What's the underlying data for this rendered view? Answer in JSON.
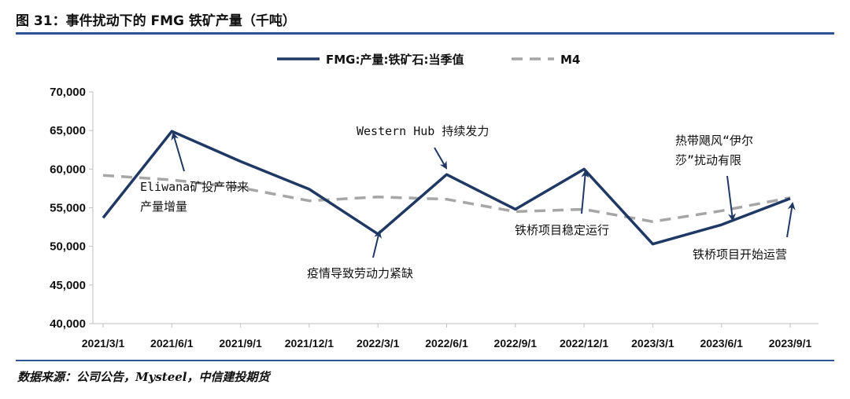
{
  "header": {
    "title": "图 31：事件扰动下的 FMG 铁矿产量（千吨）"
  },
  "footer": {
    "source": "数据来源：公司公告，Mysteel，中信建投期货"
  },
  "colors": {
    "series_main": "#203864",
    "series_ma": "#a6a6a6",
    "rule": "#2f5496",
    "arrow": "#1f3864"
  },
  "chart_data": {
    "type": "line",
    "x": [
      "2021/3/1",
      "2021/6/1",
      "2021/9/1",
      "2021/12/1",
      "2022/3/1",
      "2022/6/1",
      "2022/9/1",
      "2022/12/1",
      "2023/3/1",
      "2023/6/1",
      "2023/9/1"
    ],
    "series": [
      {
        "name": "FMG:产量:铁矿石:当季值",
        "style": "solid",
        "values": [
          53700,
          64900,
          61000,
          57400,
          51600,
          59300,
          54800,
          60000,
          50300,
          52800,
          56200
        ]
      },
      {
        "name": "M4",
        "style": "dashed",
        "values": [
          59200,
          58600,
          57600,
          55900,
          56400,
          56100,
          54500,
          54800,
          53200,
          54600,
          56300
        ]
      }
    ],
    "ylim": [
      40000,
      70000
    ],
    "yticks": [
      40000,
      45000,
      50000,
      55000,
      60000,
      65000,
      70000
    ],
    "ytick_labels": [
      "40,000",
      "45,000",
      "50,000",
      "55,000",
      "60,000",
      "65,000",
      "70,000"
    ],
    "legend_position": "top-center",
    "grid": false,
    "annotations": [
      {
        "lines": [
          "Eliwana矿投产带来",
          "产量增量"
        ],
        "point_index": 1
      },
      {
        "lines": [
          "疫情导致劳动力紧缺"
        ],
        "point_index": 4
      },
      {
        "lines": [
          "Western Hub 持续发力"
        ],
        "point_index": 5
      },
      {
        "lines": [
          "铁桥项目稳定运行"
        ],
        "point_index": 7
      },
      {
        "lines": [
          "热带飓风“伊尔",
          "莎”扰动有限"
        ],
        "point_index": 9
      },
      {
        "lines": [
          "铁桥项目开始运营"
        ],
        "point_index": 10
      }
    ]
  }
}
